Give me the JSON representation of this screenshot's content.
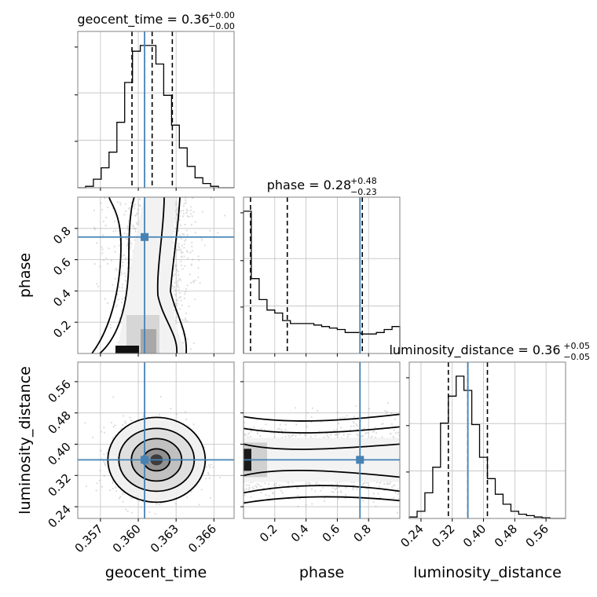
{
  "chart_data": {
    "type": "corner",
    "colors": {
      "truth": "#4682b4",
      "hist": "#000000",
      "grid": "#c0c0c0",
      "points": "#9a9a9a"
    },
    "parameters": [
      {
        "name": "geocent_time",
        "truth": 0.3605,
        "quantiles": [
          0.3595,
          0.3611,
          0.3627
        ],
        "range": [
          0.3552,
          0.3676
        ],
        "ticks": [
          0.357,
          0.36,
          0.363,
          0.366
        ],
        "tick_labels": [
          "0.357",
          "0.360",
          "0.363",
          "0.366"
        ],
        "xlabel": "geocent_time",
        "title": {
          "text": "geocent_time = 0.36",
          "sup": "+0.00",
          "sub": "−0.00"
        },
        "hist": [
          0,
          0.01,
          0.06,
          0.14,
          0.25,
          0.46,
          0.74,
          0.96,
          1.0,
          1.0,
          0.87,
          0.65,
          0.44,
          0.28,
          0.15,
          0.07,
          0.03,
          0.01,
          0,
          0
        ]
      },
      {
        "name": "phase",
        "truth": 0.745,
        "quantiles": [
          0.045,
          0.28,
          0.76
        ],
        "range": [
          0.0,
          1.0
        ],
        "ticks": [
          0.2,
          0.4,
          0.6,
          0.8
        ],
        "tick_labels": [
          "0.2",
          "0.4",
          "0.6",
          "0.8"
        ],
        "xlabel": "phase",
        "ylabel": "phase",
        "title": {
          "text": "phase = 0.28",
          "sup": "+0.48",
          "sub": "−0.23"
        },
        "hist": [
          0.95,
          0.5,
          0.36,
          0.29,
          0.27,
          0.22,
          0.2,
          0.2,
          0.2,
          0.19,
          0.18,
          0.17,
          0.16,
          0.14,
          0.14,
          0.13,
          0.13,
          0.14,
          0.16,
          0.18
        ]
      },
      {
        "name": "luminosity_distance",
        "truth": 0.36,
        "quantiles": [
          0.31,
          0.36,
          0.41
        ],
        "range": [
          0.21,
          0.61
        ],
        "ticks": [
          0.24,
          0.32,
          0.4,
          0.48,
          0.56
        ],
        "tick_labels": [
          "0.24",
          "0.32",
          "0.40",
          "0.48",
          "0.56"
        ],
        "xlabel": "luminosity_distance",
        "ylabel": "luminosity_distance",
        "title": {
          "text": "luminosity_distance = 0.36",
          "sup": "+0.05",
          "sub": "−0.05"
        },
        "hist": [
          0.01,
          0.05,
          0.18,
          0.36,
          0.67,
          0.86,
          1.0,
          0.9,
          0.66,
          0.43,
          0.28,
          0.17,
          0.1,
          0.05,
          0.03,
          0.02,
          0.01,
          0.005,
          0,
          0
        ]
      }
    ],
    "grid": true,
    "contours": true,
    "scatter_points": true
  }
}
